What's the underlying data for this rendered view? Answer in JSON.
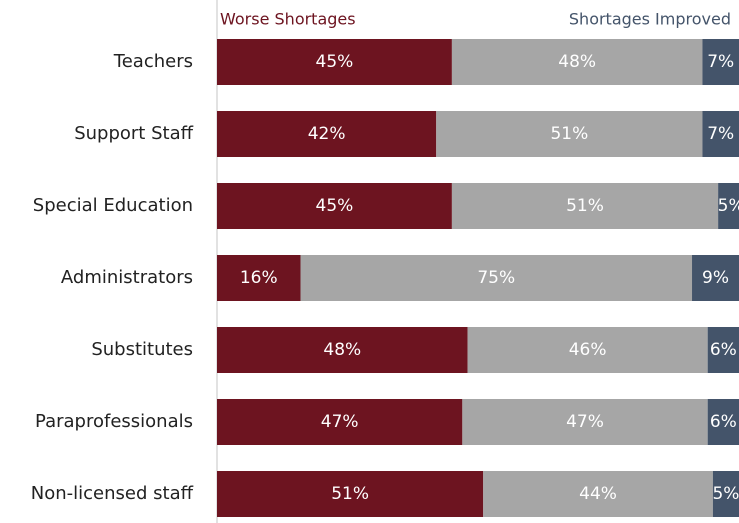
{
  "chart_data": {
    "type": "stacked-bar-horizontal",
    "categories": [
      "Teachers",
      "Support Staff",
      "Special Education",
      "Administrators",
      "Substitutes",
      "Paraprofessionals",
      "Non-licensed staff"
    ],
    "series": [
      {
        "name": "Worse Shortages",
        "color": "#6d1420",
        "values": [
          45,
          42,
          45,
          16,
          48,
          47,
          51
        ],
        "value_labels": [
          "45%",
          "42%",
          "45%",
          "16%",
          "48%",
          "47%",
          "51%"
        ]
      },
      {
        "color": "#a6a6a6",
        "values": [
          48,
          51,
          51,
          75,
          46,
          47,
          44
        ],
        "value_labels": [
          "48%",
          "51%",
          "51%",
          "75%",
          "46%",
          "47%",
          "44%"
        ]
      },
      {
        "name": "Shortages Improved",
        "color": "#44546a",
        "values": [
          7,
          7,
          5,
          9,
          6,
          6,
          5
        ],
        "value_labels": [
          "7%",
          "7%",
          "5%",
          "9%",
          "6%",
          "6%",
          "5%"
        ]
      }
    ],
    "xlim": [
      0,
      100
    ]
  }
}
